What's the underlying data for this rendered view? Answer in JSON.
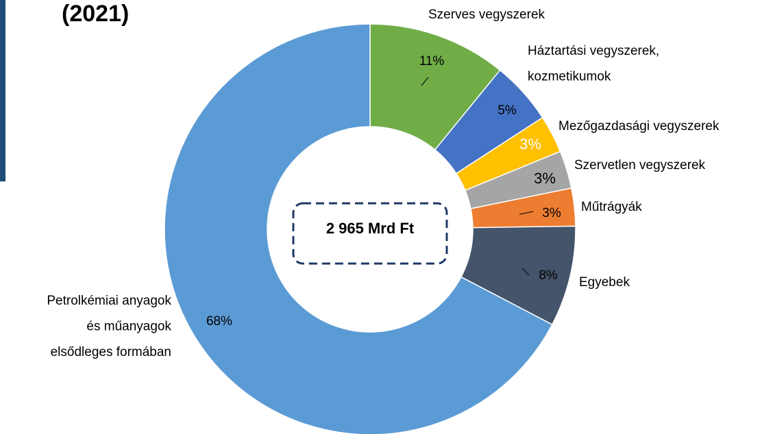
{
  "chart_data": {
    "type": "donut",
    "title": "(2021)",
    "center_label": "2 965 Mrd Ft",
    "categories": [
      [
        "Szerves vegyszerek"
      ],
      [
        "Háztartási vegyszerek,",
        "kozmetikumok"
      ],
      [
        "Mezőgazdasági vegyszerek"
      ],
      [
        "Szervetlen vegyszerek"
      ],
      [
        "Műtrágyák"
      ],
      [
        "Egyebek"
      ],
      [
        "Petrolkémiai anyagok",
        "és műanyagok",
        "elsődleges formában"
      ]
    ],
    "values": [
      11,
      5,
      3,
      3,
      3,
      8,
      68
    ],
    "value_labels": [
      "11%",
      "5%",
      "3%",
      "3%",
      "3%",
      "8%",
      "68%"
    ],
    "colors": [
      "#70ad47",
      "#4472c4",
      "#ffc000",
      "#a5a5a5",
      "#ed7d31",
      "#44546a",
      "#5b9bd5"
    ]
  }
}
